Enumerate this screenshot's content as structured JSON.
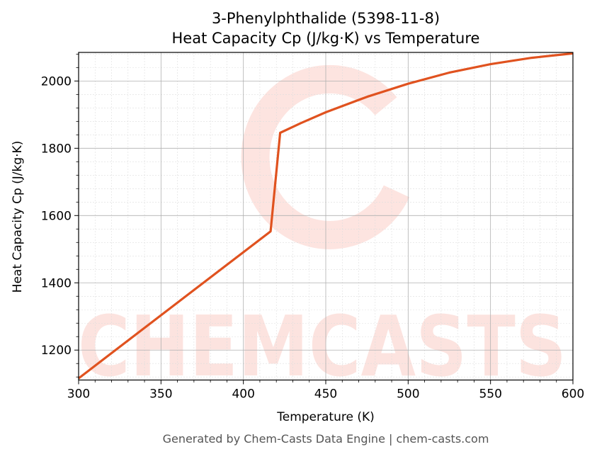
{
  "chart_data": {
    "type": "line",
    "title": "3-Phenylphthalide (5398-11-8)",
    "subtitle": "Heat Capacity Cp (J/kg·K) vs Temperature",
    "xlabel": "Temperature (K)",
    "ylabel": "Heat Capacity Cp (J/kg·K)",
    "xlim": [
      300,
      600
    ],
    "ylim": [
      1111,
      2085
    ],
    "xticks": [
      300,
      350,
      400,
      450,
      500,
      550,
      600
    ],
    "yticks": [
      1200,
      1400,
      1600,
      1800,
      2000
    ],
    "grid": true,
    "series": [
      {
        "color": "#e0521f",
        "x": [
          300,
          416.5,
          422.3,
          435,
          450,
          475,
          500,
          525,
          550,
          575,
          600
        ],
        "y": [
          1116,
          1553,
          1846,
          1875,
          1907,
          1953,
          1992,
          2025,
          2050,
          2069,
          2082
        ]
      }
    ]
  },
  "watermark": "CHEMCASTS",
  "footer": "Generated by Chem-Casts Data Engine | chem-casts.com"
}
